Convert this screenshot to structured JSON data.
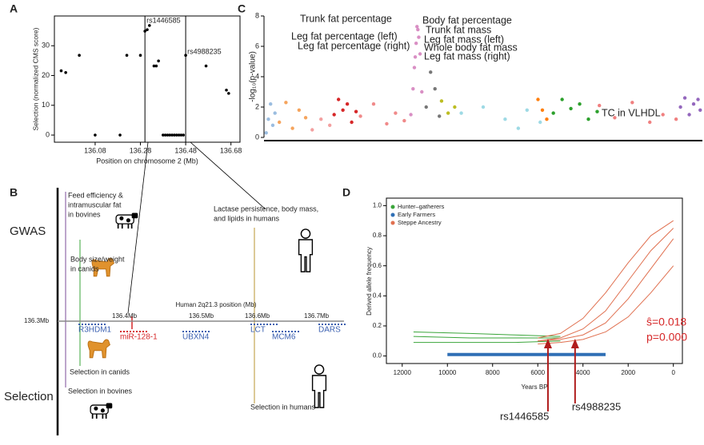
{
  "panel_labels": [
    "A",
    "B",
    "C",
    "D"
  ],
  "chart_data": [
    {
      "type": "scatter",
      "x_label": "Position on chromosome 2 (Mb)",
      "y_label": "Selection (normalized CMS score)",
      "color": "#000000",
      "xlim": [
        135.9,
        136.72
      ],
      "ylim": [
        -2.4,
        40
      ],
      "xticks": [
        136.08,
        136.28,
        136.48,
        136.68
      ],
      "yticks": [
        0,
        10,
        20,
        30
      ],
      "x": [
        135.93,
        135.95,
        136.01,
        136.08,
        136.19,
        136.22,
        136.28,
        136.3,
        136.31,
        136.32,
        136.34,
        136.35,
        136.36,
        136.38,
        136.39,
        136.4,
        136.41,
        136.42,
        136.43,
        136.44,
        136.45,
        136.46,
        136.47,
        136.48,
        136.57,
        136.66,
        136.67
      ],
      "values": [
        21.6,
        21,
        26.8,
        0,
        0,
        26.8,
        26.8,
        34.9,
        35.4,
        36.8,
        23.2,
        23.2,
        24.9,
        0,
        0,
        0,
        0,
        0,
        0,
        0,
        0,
        0,
        0,
        26.8,
        23.2,
        15.1,
        14
      ],
      "markers": [
        {
          "label": "rs1446585",
          "x": 136.3
        },
        {
          "label": "rs4988235",
          "x": 136.48
        }
      ]
    },
    {
      "type": "manhattan",
      "y_label": "-log₁₀(p-value)",
      "xlim": [
        0,
        100
      ],
      "ylim": [
        0,
        8
      ],
      "yticks": [
        0,
        2,
        4,
        6,
        8
      ],
      "annotations": [
        "Trunk fat percentage",
        "Leg fat percentage (left)",
        "Leg fat percentage (right)",
        "Body fat percentage",
        "Trunk fat mass",
        "Leg fat mass (left)",
        "Whole body fat mass",
        "Leg fat mass (right)",
        "TC in VLHDL"
      ],
      "groups": [
        {
          "color": "#9bbde0",
          "x": [
            0.5,
            1,
            1.5,
            2,
            2.5
          ],
          "values": [
            0.3,
            1.2,
            2.2,
            0.8,
            1.6
          ]
        },
        {
          "color": "#f5a45d",
          "x": [
            3.5,
            5,
            6.5,
            8,
            9.5
          ],
          "values": [
            1.0,
            2.3,
            0.6,
            1.8,
            1.3
          ]
        },
        {
          "color": "#f3a0a0",
          "x": [
            11,
            13,
            15
          ],
          "values": [
            0.5,
            1.2,
            0.8
          ]
        },
        {
          "color": "#d62728",
          "x": [
            16,
            17,
            18,
            19,
            20,
            21
          ],
          "values": [
            1.5,
            2.5,
            1.8,
            2.2,
            1.0,
            1.7
          ]
        },
        {
          "color": "#f08a8a",
          "x": [
            22,
            25,
            28,
            30,
            32
          ],
          "values": [
            1.4,
            2.2,
            0.9,
            1.6,
            1.1
          ]
        },
        {
          "color": "#d98fc4",
          "x": [
            33.5,
            34,
            34.3,
            34.5,
            34.7,
            34.9,
            35.1,
            35.3,
            35.6,
            36
          ],
          "values": [
            1.5,
            3.2,
            4.6,
            5.3,
            6.2,
            7.3,
            7.1,
            6.6,
            5.5,
            3.0
          ]
        },
        {
          "color": "#777777",
          "x": [
            37,
            38,
            39,
            40
          ],
          "values": [
            2.0,
            4.3,
            3.2,
            1.4
          ]
        },
        {
          "color": "#bcbd22",
          "x": [
            40.5,
            42,
            43.5
          ],
          "values": [
            2.4,
            1.6,
            2.0
          ]
        },
        {
          "color": "#9edae5",
          "x": [
            45,
            50,
            55,
            58,
            60,
            63
          ],
          "values": [
            1.6,
            2.0,
            1.2,
            0.6,
            1.8,
            1.0
          ]
        },
        {
          "color": "#ff7f0e",
          "x": [
            62.5,
            63.5,
            64.5
          ],
          "values": [
            2.5,
            1.8,
            1.2
          ]
        },
        {
          "color": "#2ca02c",
          "x": [
            66,
            68,
            70,
            72,
            74,
            76
          ],
          "values": [
            1.6,
            2.5,
            1.9,
            2.2,
            1.2,
            1.7
          ]
        },
        {
          "color": "#f08080",
          "x": [
            76.5,
            80,
            84,
            88,
            91,
            94
          ],
          "values": [
            2.1,
            1.3,
            2.3,
            1.0,
            1.5,
            1.2
          ]
        },
        {
          "color": "#9467bd",
          "x": [
            95,
            96,
            97,
            98,
            99,
            99.5
          ],
          "values": [
            2.0,
            2.6,
            1.5,
            2.2,
            2.5,
            1.8
          ]
        }
      ]
    },
    {
      "type": "trajectory",
      "x_label": "Years BP",
      "y_label": "Derived allele frequency",
      "xlim": [
        12700,
        -400
      ],
      "ylim": [
        -0.05,
        1.05
      ],
      "xticks": [
        12000,
        10000,
        8000,
        6000,
        4000,
        2000,
        0
      ],
      "yticks": [
        {
          "value": 0,
          "label": "0.0"
        },
        {
          "value": 0.2,
          "label": "0.2"
        },
        {
          "value": 0.4,
          "label": "0.4"
        },
        {
          "value": 0.6,
          "label": "0.6"
        },
        {
          "value": 0.8,
          "label": "0.8"
        },
        {
          "value": 1,
          "label": "1.0"
        }
      ],
      "series": [
        {
          "name": "Hunter–gatherers",
          "color": "#3aa53a",
          "lines": [
            {
              "x": [
                11500,
                9000,
                7000,
                5000
              ],
              "values": [
                0.13,
                0.12,
                0.12,
                0.12
              ]
            },
            {
              "x": [
                11500,
                9000,
                7000,
                5000
              ],
              "values": [
                0.09,
                0.09,
                0.09,
                0.1
              ]
            },
            {
              "x": [
                11500,
                9000,
                7000,
                5000
              ],
              "values": [
                0.16,
                0.15,
                0.14,
                0.13
              ]
            }
          ]
        },
        {
          "name": "Early Farmers",
          "color": "#2f6fb5",
          "lines": [
            {
              "x": [
                10000,
                3000
              ],
              "values": [
                0.01,
                0.01
              ]
            }
          ]
        },
        {
          "name": "Steppe Ancestry",
          "color": "#e07050",
          "lines": [
            {
              "x": [
                6000,
                5000,
                4000,
                3000,
                2000,
                1000,
                0
              ],
              "values": [
                0.1,
                0.12,
                0.18,
                0.3,
                0.5,
                0.7,
                0.85
              ]
            },
            {
              "x": [
                6000,
                5000,
                4000,
                3000,
                2000,
                1000,
                0
              ],
              "values": [
                0.1,
                0.11,
                0.14,
                0.22,
                0.38,
                0.58,
                0.78
              ]
            },
            {
              "x": [
                6000,
                5000,
                4000,
                3000,
                2000,
                1000,
                0
              ],
              "values": [
                0.12,
                0.15,
                0.25,
                0.42,
                0.62,
                0.8,
                0.9
              ]
            },
            {
              "x": [
                6000,
                5000,
                4000,
                3000,
                2000,
                1000,
                0
              ],
              "values": [
                0.08,
                0.09,
                0.11,
                0.16,
                0.26,
                0.42,
                0.6
              ]
            }
          ]
        }
      ],
      "stats": [
        "ŝ=0.018",
        "p=0.000"
      ],
      "arrows": [
        {
          "label": "rs1446585",
          "x": 5550
        },
        {
          "label": "rs4988235",
          "x": 4350
        }
      ]
    }
  ],
  "diagram": {
    "row_labels": [
      "GWAS",
      "Selection"
    ],
    "gwas": [
      [
        "Feed efficiency &",
        "intramuscular fat",
        "in bovines"
      ],
      [
        "Body size/weight",
        "in canids"
      ],
      [
        "Lactase persistence, body mass,",
        "and lipids in humans"
      ]
    ],
    "axis_title": "Human 2q21.3 position (Mb)",
    "axis_ticks": [
      "136.3Mb",
      "136.4Mb",
      "136.5Mb",
      "136.6Mb",
      "136.7Mb"
    ],
    "genes": [
      "R3HDM1",
      "miR-128-1",
      "UBXN4",
      "LCT",
      "MCM6",
      "DARS"
    ],
    "selection": [
      "Selection in canids",
      "Selection in bovines",
      "Selection in humans"
    ]
  }
}
